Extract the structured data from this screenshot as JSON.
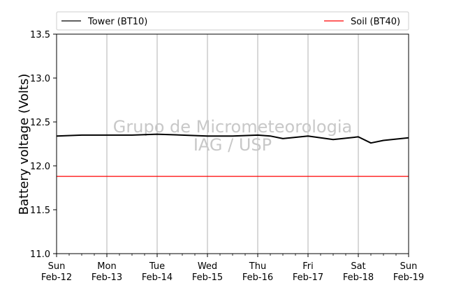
{
  "chart_data": {
    "type": "line",
    "ylabel": "Battery voltage (Volts)",
    "ylim": [
      11.0,
      13.5
    ],
    "yticks": [
      "11.0",
      "11.5",
      "12.0",
      "12.5",
      "13.0",
      "13.5"
    ],
    "xlim": [
      "2017-02-12",
      "2017-02-19"
    ],
    "xticks": [
      {
        "day": "Sun",
        "date": "Feb-12"
      },
      {
        "day": "Mon",
        "date": "Feb-13"
      },
      {
        "day": "Tue",
        "date": "Feb-14"
      },
      {
        "day": "Wed",
        "date": "Feb-15"
      },
      {
        "day": "Thu",
        "date": "Feb-16"
      },
      {
        "day": "Fri",
        "date": "Feb-17"
      },
      {
        "day": "Sat",
        "date": "Feb-18"
      },
      {
        "day": "Sun",
        "date": "Feb-19"
      }
    ],
    "grid": "vertical",
    "legend_placement": "top",
    "series": [
      {
        "name": "Tower (BT10)",
        "color": "#000000",
        "x": [
          "2017-02-12 00:00",
          "2017-02-12 12:00",
          "2017-02-13 00:00",
          "2017-02-13 12:00",
          "2017-02-14 00:00",
          "2017-02-14 12:00",
          "2017-02-15 00:00",
          "2017-02-15 12:00",
          "2017-02-16 00:00",
          "2017-02-16 06:00",
          "2017-02-16 12:00",
          "2017-02-17 00:00",
          "2017-02-17 06:00",
          "2017-02-17 12:00",
          "2017-02-18 00:00",
          "2017-02-18 06:00",
          "2017-02-18 12:00",
          "2017-02-19 00:00"
        ],
        "y": [
          12.34,
          12.35,
          12.35,
          12.35,
          12.36,
          12.35,
          12.34,
          12.34,
          12.35,
          12.34,
          12.31,
          12.34,
          12.32,
          12.3,
          12.33,
          12.26,
          12.29,
          12.32
        ]
      },
      {
        "name": "Soil (BT40)",
        "color": "#ff0000",
        "x": [
          "2017-02-12 00:00",
          "2017-02-13 00:00",
          "2017-02-14 00:00",
          "2017-02-15 00:00",
          "2017-02-16 00:00",
          "2017-02-17 00:00",
          "2017-02-18 00:00",
          "2017-02-19 00:00"
        ],
        "y": [
          11.88,
          11.88,
          11.88,
          11.88,
          11.88,
          11.88,
          11.88,
          11.88
        ]
      }
    ],
    "watermark": [
      "Grupo de Micrometeorologia",
      "IAG / USP"
    ]
  }
}
